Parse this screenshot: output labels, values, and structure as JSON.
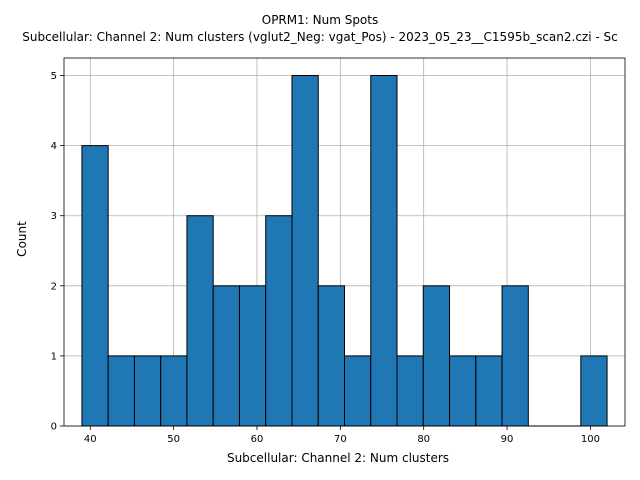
{
  "chart_data": {
    "type": "bar",
    "title": "OPRM1: Num Spots",
    "subtitle": "Subcellular: Channel 2: Num clusters (vglut2_Neg: vgat_Pos) - 2023_05_23__C1595b_scan2.czi - Sc",
    "xlabel": "Subcellular: Channel 2: Num clusters",
    "ylabel": "Count",
    "xlim": [
      36.85,
      104.15
    ],
    "ylim": [
      0,
      5.25
    ],
    "xticks": [
      40,
      50,
      60,
      70,
      80,
      90,
      100
    ],
    "yticks": [
      0,
      1,
      2,
      3,
      4,
      5
    ],
    "grid": true,
    "bar_color": "#1f77b4",
    "bin_edges": [
      39.0,
      42.15,
      45.3,
      48.45,
      51.6,
      54.75,
      57.9,
      61.05,
      64.2,
      67.35,
      70.5,
      73.65,
      76.8,
      79.95,
      83.1,
      86.25,
      89.4,
      92.55,
      95.7,
      98.85,
      102.0
    ],
    "values": [
      4,
      1,
      1,
      1,
      3,
      2,
      2,
      3,
      5,
      2,
      1,
      5,
      1,
      2,
      1,
      1,
      2,
      0,
      0,
      1
    ]
  }
}
